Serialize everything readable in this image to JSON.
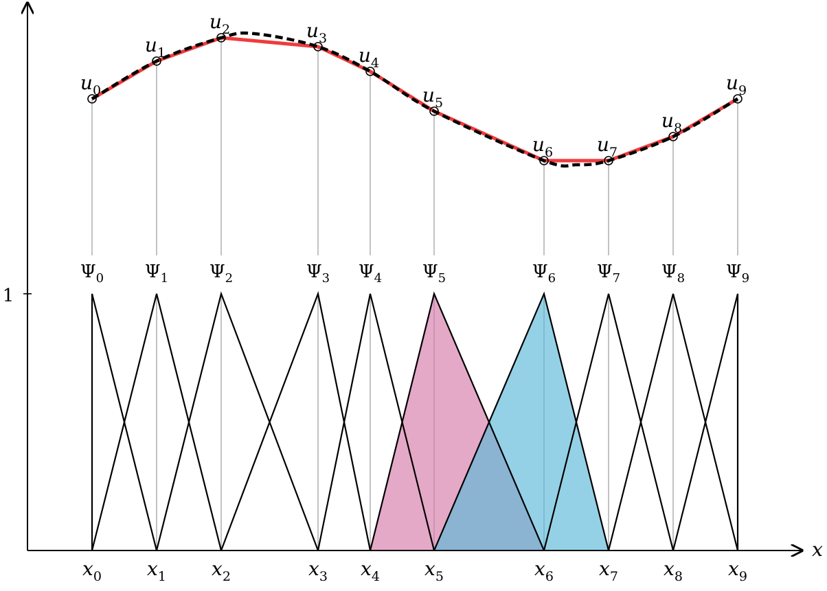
{
  "axis": {
    "x_label": "x",
    "y_tick_label": "1"
  },
  "nodes": [
    {
      "x_label": "x",
      "x_sub": "0",
      "psi_label": "Ψ",
      "psi_sub": "0",
      "u_label": "u",
      "u_sub": "0"
    },
    {
      "x_label": "x",
      "x_sub": "1",
      "psi_label": "Ψ",
      "psi_sub": "1",
      "u_label": "u",
      "u_sub": "1"
    },
    {
      "x_label": "x",
      "x_sub": "2",
      "psi_label": "Ψ",
      "psi_sub": "2",
      "u_label": "u",
      "u_sub": "2"
    },
    {
      "x_label": "x",
      "x_sub": "3",
      "psi_label": "Ψ",
      "psi_sub": "3",
      "u_label": "u",
      "u_sub": "3"
    },
    {
      "x_label": "x",
      "x_sub": "4",
      "psi_label": "Ψ",
      "psi_sub": "4",
      "u_label": "u",
      "u_sub": "4"
    },
    {
      "x_label": "x",
      "x_sub": "5",
      "psi_label": "Ψ",
      "psi_sub": "5",
      "u_label": "u",
      "u_sub": "5"
    },
    {
      "x_label": "x",
      "x_sub": "6",
      "psi_label": "Ψ",
      "psi_sub": "6",
      "u_label": "u",
      "u_sub": "6"
    },
    {
      "x_label": "x",
      "x_sub": "7",
      "psi_label": "Ψ",
      "psi_sub": "7",
      "u_label": "u",
      "u_sub": "7"
    },
    {
      "x_label": "x",
      "x_sub": "8",
      "psi_label": "Ψ",
      "psi_sub": "8",
      "u_label": "u",
      "u_sub": "8"
    },
    {
      "x_label": "x",
      "x_sub": "9",
      "psi_label": "Ψ",
      "psi_sub": "9",
      "u_label": "u",
      "u_sub": "9"
    }
  ],
  "highlighted_basis": [
    {
      "node_index": 5,
      "color": "#d67ba8"
    },
    {
      "node_index": 6,
      "color": "#5bb8d8"
    }
  ],
  "colors": {
    "interpolant": "#f03c3c",
    "exact_curve": "#000000",
    "basis_lines": "#000000",
    "guide_lines": "#999999"
  }
}
